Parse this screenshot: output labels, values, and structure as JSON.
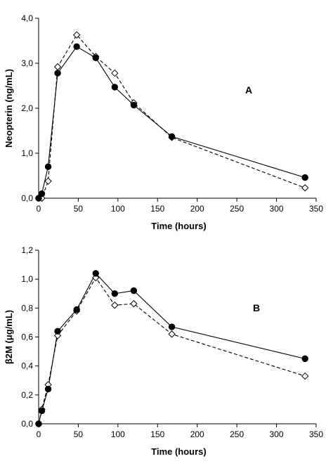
{
  "chart_data": [
    {
      "type": "line",
      "panel_label": "A",
      "xlabel": "Time (hours)",
      "ylabel": "Neopterin (ng/mL)",
      "xlim": [
        0,
        350
      ],
      "ylim": [
        0,
        4
      ],
      "xticks": [
        0,
        50,
        100,
        150,
        200,
        250,
        300,
        350
      ],
      "xtick_labels": [
        "0",
        "50",
        "100",
        "150",
        "200",
        "250",
        "300",
        "350"
      ],
      "yticks": [
        0,
        1,
        2,
        3,
        4
      ],
      "ytick_labels": [
        "0,0",
        "1,0",
        "2,0",
        "3,0",
        "4,0"
      ],
      "grid": false,
      "series": [
        {
          "marker": "filled-circle",
          "line_style": "solid",
          "color": "#000000",
          "x": [
            0,
            4,
            12,
            24,
            48,
            72,
            96,
            120,
            168,
            336
          ],
          "y": [
            0.0,
            0.1,
            0.7,
            2.78,
            3.37,
            3.12,
            2.47,
            2.07,
            1.37,
            0.46
          ]
        },
        {
          "marker": "open-diamond",
          "line_style": "dashed",
          "color": "#000000",
          "x": [
            0,
            4,
            12,
            24,
            48,
            72,
            96,
            120,
            168,
            336
          ],
          "y": [
            0.0,
            0.0,
            0.38,
            2.92,
            3.63,
            3.15,
            2.78,
            2.12,
            1.35,
            0.23
          ]
        }
      ]
    },
    {
      "type": "line",
      "panel_label": "B",
      "xlabel": "Time (hours)",
      "ylabel": "β2M (μg/mL)",
      "xlim": [
        0,
        350
      ],
      "ylim": [
        0,
        1.2
      ],
      "xticks": [
        0,
        50,
        100,
        150,
        200,
        250,
        300,
        350
      ],
      "xtick_labels": [
        "0",
        "50",
        "100",
        "150",
        "200",
        "250",
        "300",
        "350"
      ],
      "yticks": [
        0,
        0.2,
        0.4,
        0.6,
        0.8,
        1.0,
        1.2
      ],
      "ytick_labels": [
        "0,0",
        "0,2",
        "0,4",
        "0,6",
        "0,8",
        "1,0",
        "1,2"
      ],
      "grid": false,
      "series": [
        {
          "marker": "filled-circle",
          "line_style": "solid",
          "color": "#000000",
          "x": [
            0,
            4,
            12,
            24,
            48,
            72,
            96,
            120,
            168,
            336
          ],
          "y": [
            0.0,
            0.09,
            0.24,
            0.64,
            0.79,
            1.04,
            0.9,
            0.92,
            0.67,
            0.45
          ]
        },
        {
          "marker": "open-diamond",
          "line_style": "dashed",
          "color": "#000000",
          "x": [
            0,
            4,
            12,
            24,
            48,
            72,
            96,
            120,
            168,
            336
          ],
          "y": [
            0.0,
            0.1,
            0.27,
            0.61,
            0.78,
            1.01,
            0.82,
            0.83,
            0.62,
            0.33
          ]
        }
      ]
    }
  ]
}
